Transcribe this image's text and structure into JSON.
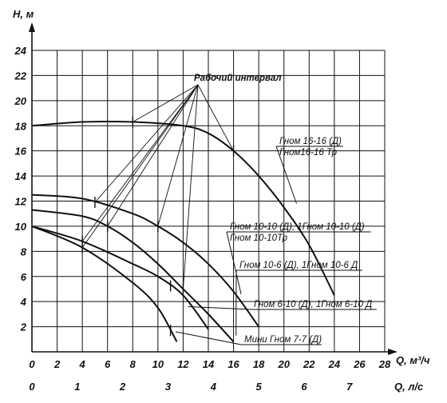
{
  "chart_data": {
    "type": "line",
    "title": "",
    "ylabel": "H, м",
    "xlabel": "Q, м³/ч",
    "x2label": "Q, л/с",
    "ylim": [
      0,
      24
    ],
    "xlim": [
      0,
      28
    ],
    "grid": true,
    "y_ticks": [
      "2",
      "4",
      "6",
      "8",
      "10",
      "12",
      "14",
      "16",
      "18",
      "20",
      "22",
      "24"
    ],
    "x_ticks": [
      "0",
      "2",
      "4",
      "6",
      "8",
      "10",
      "12",
      "14",
      "16",
      "18",
      "20",
      "22",
      "24",
      "26",
      "28"
    ],
    "x2_ticks": [
      "0",
      "1",
      "2",
      "3",
      "4",
      "5",
      "6",
      "7"
    ],
    "annotation": "Рабочий интервал",
    "series": [
      {
        "name": "Гном 16-16 (Д) / Гном16-16 Тр",
        "label_lines": [
          "Гном 16-16 (Д)",
          "Гном16-16 Тр"
        ],
        "x": [
          0,
          4,
          8,
          12,
          14,
          16,
          18,
          20,
          22,
          24
        ],
        "y": [
          18,
          18.3,
          18.3,
          18,
          17.4,
          16,
          14,
          11.5,
          8.5,
          4.5
        ],
        "work_range": [
          8,
          16
        ]
      },
      {
        "name": "Гном 10-10 (Д), 1Гном 10-10 (Д) / Гном 10-10Тр",
        "label_lines": [
          "Гном 10-10 (Д), 1Гном 10-10 (Д)",
          "Гном 10-10Тр"
        ],
        "x": [
          0,
          4,
          8,
          10,
          12,
          14,
          16,
          18
        ],
        "y": [
          12.5,
          12.2,
          11,
          10,
          8.7,
          7,
          4.8,
          2
        ],
        "work_range": [
          5,
          10
        ]
      },
      {
        "name": "Гном 10-6 (Д), 1Гном 10-6 Д",
        "label_lines": [
          "Гном 10-6 (Д), 1Гном 10-6 Д"
        ],
        "x": [
          0,
          4,
          6,
          8,
          10,
          12,
          14,
          16
        ],
        "y": [
          11.3,
          10.8,
          10,
          8.7,
          7,
          5,
          3,
          0.8
        ],
        "work_range": [
          6,
          12
        ]
      },
      {
        "name": "Гном 6-10 (Д), 1Гном 6-10 Д",
        "label_lines": [
          "Гном 6-10 (Д), 1Гном 6-10 Д"
        ],
        "x": [
          0,
          4,
          8,
          10,
          12,
          14
        ],
        "y": [
          10,
          8.8,
          7,
          6,
          4.5,
          1.8
        ],
        "work_range": [
          4,
          11
        ]
      },
      {
        "name": "Мини Гном 7-7 (Д)",
        "label_lines": [
          "Мини Гном 7-7 (Д)"
        ],
        "x": [
          0,
          4,
          8,
          10,
          11.5
        ],
        "y": [
          10,
          8.3,
          5.5,
          3.5,
          0.8
        ],
        "work_range": [
          4,
          11
        ]
      }
    ]
  }
}
